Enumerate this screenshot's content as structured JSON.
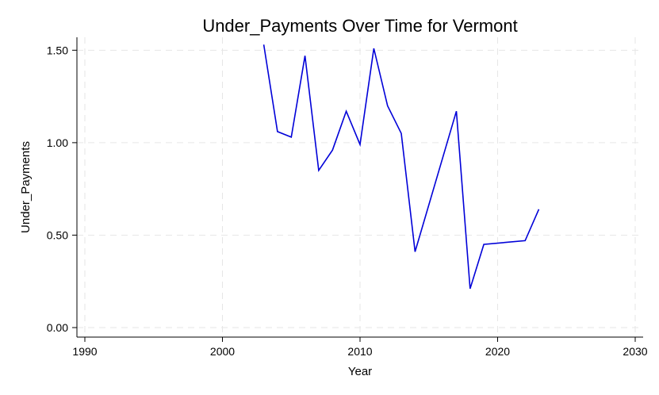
{
  "chart_data": {
    "type": "line",
    "title": "Under_Payments Over Time for Vermont",
    "xlabel": "Year",
    "ylabel": "Under_Payments",
    "xlim": [
      1990,
      2030
    ],
    "ylim": [
      0,
      1.57
    ],
    "xticks": [
      1990,
      2000,
      2010,
      2020,
      2030
    ],
    "yticks": [
      0.0,
      0.5,
      1.0,
      1.5
    ],
    "ytick_labels": [
      "0.00",
      "0.50",
      "1.00",
      "1.50"
    ],
    "grid": true,
    "series": [
      {
        "color": "#0000d8",
        "x": [
          2003,
          2004,
          2005,
          2006,
          2007,
          2008,
          2009,
          2010,
          2011,
          2012,
          2013,
          2014,
          2017,
          2018,
          2019,
          2022,
          2023
        ],
        "y": [
          1.53,
          1.06,
          1.03,
          1.47,
          0.85,
          0.96,
          1.17,
          0.99,
          1.51,
          1.2,
          1.05,
          0.41,
          1.17,
          0.21,
          0.45,
          0.47,
          0.64
        ]
      }
    ]
  }
}
